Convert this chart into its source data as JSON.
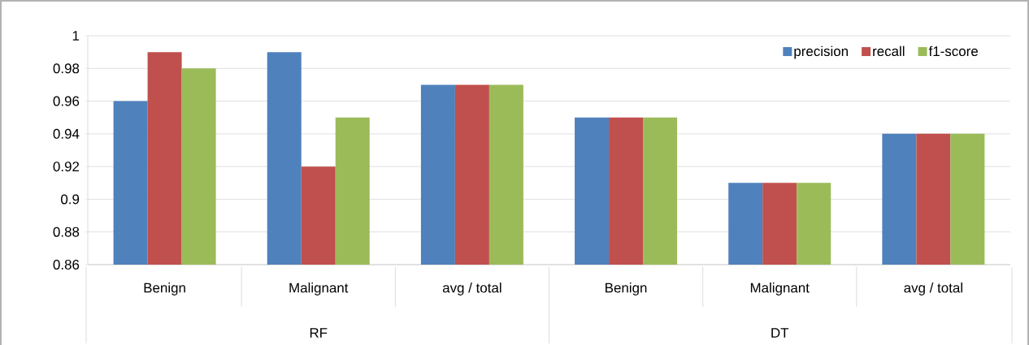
{
  "chart_data": {
    "type": "bar",
    "categories": [
      "Benign",
      "Malignant",
      "avg / total",
      "Benign",
      "Malignant",
      "avg / total"
    ],
    "annotations": [
      "RF",
      "DT"
    ],
    "series": [
      {
        "name": "precision",
        "color": "#4f81bd",
        "values": [
          0.96,
          0.99,
          0.97,
          0.95,
          0.91,
          0.94
        ]
      },
      {
        "name": "recall",
        "color": "#c0504d",
        "values": [
          0.99,
          0.92,
          0.97,
          0.95,
          0.91,
          0.94
        ]
      },
      {
        "name": "f1-score",
        "color": "#9bbb59",
        "values": [
          0.98,
          0.95,
          0.97,
          0.95,
          0.91,
          0.94
        ]
      }
    ],
    "ylim": [
      0.86,
      1
    ],
    "yticks": [
      0.86,
      0.88,
      0.9,
      0.92,
      0.94,
      0.96,
      0.98,
      1
    ],
    "grid": "y",
    "legend": "top right"
  }
}
